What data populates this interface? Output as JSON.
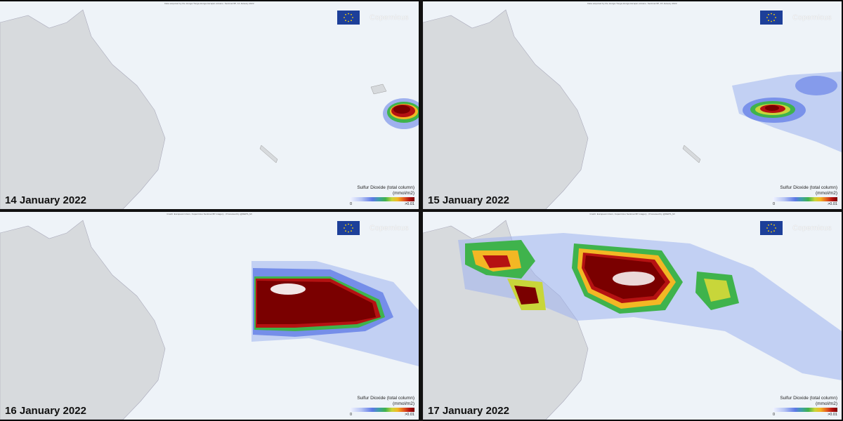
{
  "panels": [
    {
      "date": "14 January 2022",
      "credit": "Data acquired by the Hunga Tonga-Hunga Ha'apai volcano. Sentinel-5P, 14 January 2022"
    },
    {
      "date": "15 January 2022",
      "credit": "Data acquired by the Hunga Tonga-Hunga Ha'apai volcano. Sentinel-5P, 15 January 2022"
    },
    {
      "date": "16 January 2022",
      "credit": "Credit: European Union, Copernicus Sentinel-5P imagery , Processed by @DEPS_Mi"
    },
    {
      "date": "17 January 2022",
      "credit": "Credit: European Union, Copernicus Sentinel-5P imagery , Processed by @DEPS_Mi"
    }
  ],
  "branding": {
    "eu_flag": "eu-flag-icon",
    "copernicus": "Copernicus"
  },
  "legend": {
    "title_line1": "Sulfur Dioxide (total column)",
    "title_line2": "(mmol/m2)",
    "min_label": "0",
    "max_label": ">0.01",
    "colors": [
      "#f2f4ff",
      "#5b78e6",
      "#3fb34c",
      "#c8d63a",
      "#f3b724",
      "#e2561e",
      "#b51212",
      "#7a0000"
    ]
  },
  "colors": {
    "land": "#d7dadd",
    "ocean": "#eef3f8"
  }
}
